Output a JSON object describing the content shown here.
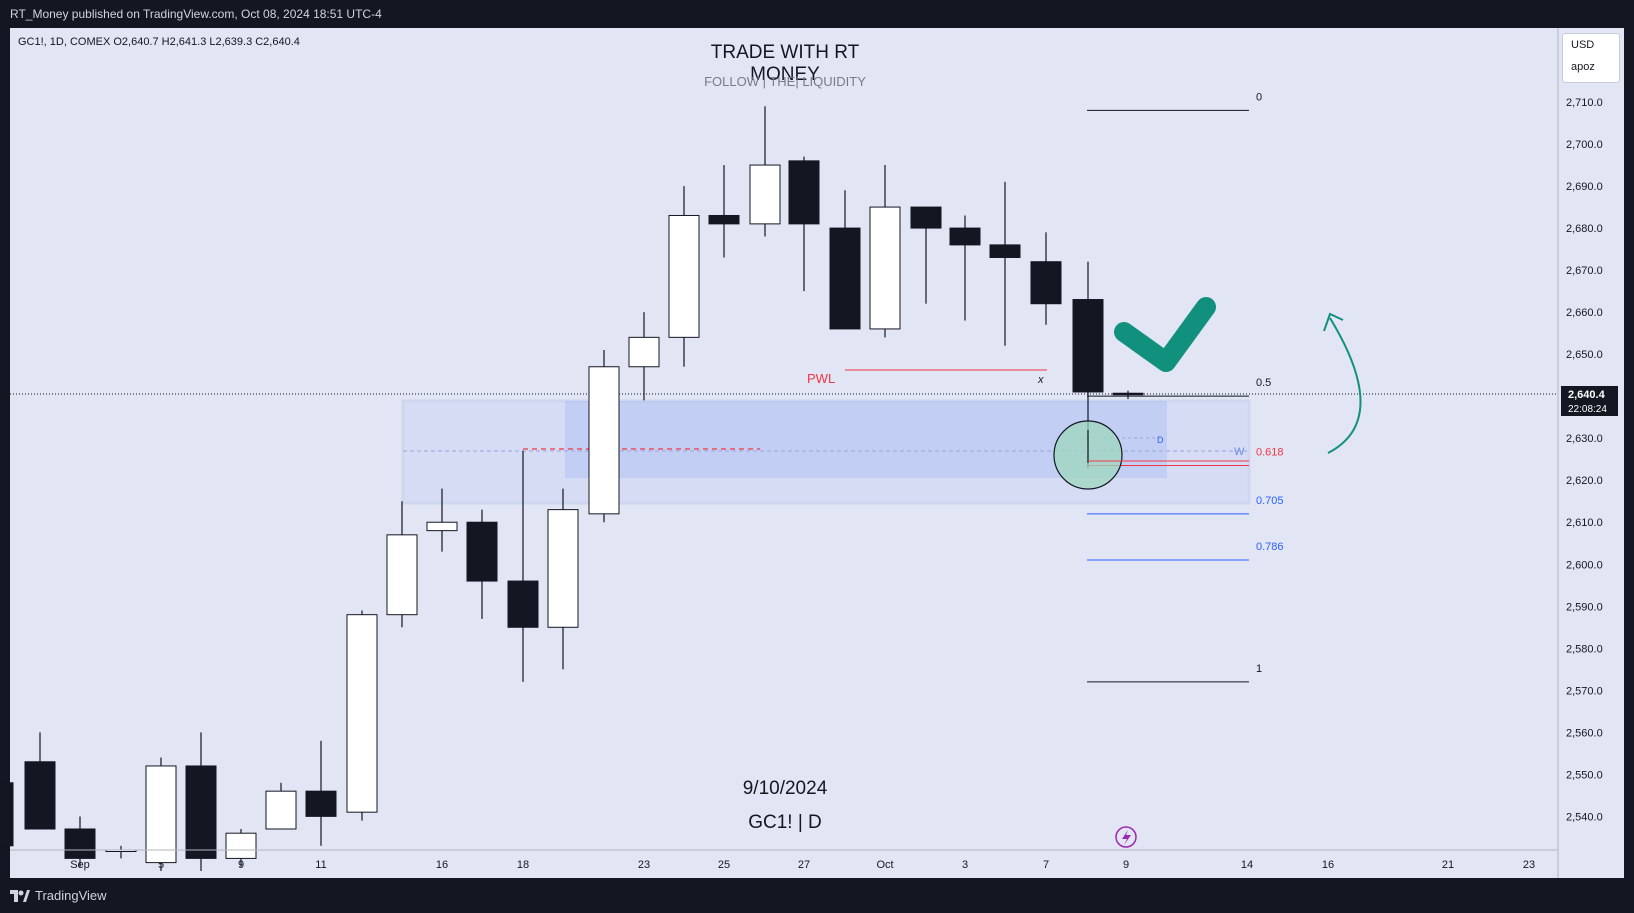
{
  "header": {
    "published": "RT_Money published on TradingView.com, Oct 08, 2024 18:51 UTC-4"
  },
  "symbol_info": {
    "ohlc_text": "GC1!, 1D, COMEX  O2,640.7  H2,641.3  L2,639.3  C2,640.4"
  },
  "overlay": {
    "title": "TRADE WITH RT MONEY",
    "subtitle": "FOLLOW  |  THE|  LIQUIDITY",
    "date": "9/10/2024",
    "symbol_tf": "GC1! | D"
  },
  "price_scale": {
    "currency": "USD",
    "scale_label": "apoz"
  },
  "footer": {
    "brand": "TradingView"
  },
  "colors": {
    "background": "#e2e5f4",
    "frame": "#131722",
    "bull_body": "#ffffff",
    "bear_body": "#131722",
    "accent_green": "#12907e",
    "fib_blue": "#2962ff",
    "fib_red": "#f23645"
  },
  "chart_data": {
    "type": "candlestick",
    "symbol": "GC1!",
    "timeframe": "1D",
    "exchange": "COMEX",
    "ylim": [
      2532,
      2720
    ],
    "y_ticks": [
      2540,
      2550,
      2560,
      2570,
      2580,
      2590,
      2600,
      2610,
      2620,
      2630,
      2640,
      2650,
      2660,
      2670,
      2680,
      2690,
      2700,
      2710
    ],
    "x_ticks": [
      "Sep",
      "5",
      "9",
      "11",
      "16",
      "18",
      "23",
      "25",
      "27",
      "Oct",
      "3",
      "7",
      "9",
      "14",
      "16",
      "21",
      "23"
    ],
    "candles": [
      {
        "o": 2548,
        "h": 2555,
        "l": 2533,
        "c": 2533
      },
      {
        "o": 2553,
        "h": 2560,
        "l": 2537,
        "c": 2537
      },
      {
        "o": 2537,
        "h": 2540,
        "l": 2528,
        "c": 2530
      },
      {
        "o": 2532,
        "h": 2533,
        "l": 2530,
        "c": 2532
      },
      {
        "o": 2529,
        "h": 2554,
        "l": 2527,
        "c": 2552
      },
      {
        "o": 2552,
        "h": 2560,
        "l": 2527,
        "c": 2530
      },
      {
        "o": 2530,
        "h": 2537,
        "l": 2528,
        "c": 2536
      },
      {
        "o": 2537,
        "h": 2548,
        "l": 2537,
        "c": 2546
      },
      {
        "o": 2546,
        "h": 2558,
        "l": 2533,
        "c": 2540
      },
      {
        "o": 2541,
        "h": 2589,
        "l": 2539,
        "c": 2588
      },
      {
        "o": 2588,
        "h": 2615,
        "l": 2585,
        "c": 2607
      },
      {
        "o": 2608,
        "h": 2618,
        "l": 2603,
        "c": 2610
      },
      {
        "o": 2610,
        "h": 2613,
        "l": 2587,
        "c": 2596
      },
      {
        "o": 2596,
        "h": 2627,
        "l": 2572,
        "c": 2585
      },
      {
        "o": 2585,
        "h": 2618,
        "l": 2575,
        "c": 2613
      },
      {
        "o": 2612,
        "h": 2651,
        "l": 2610,
        "c": 2647
      },
      {
        "o": 2647,
        "h": 2660,
        "l": 2639,
        "c": 2654
      },
      {
        "o": 2654,
        "h": 2690,
        "l": 2647,
        "c": 2683
      },
      {
        "o": 2683,
        "h": 2695,
        "l": 2673,
        "c": 2681
      },
      {
        "o": 2681,
        "h": 2709,
        "l": 2678,
        "c": 2695
      },
      {
        "o": 2696,
        "h": 2697,
        "l": 2665,
        "c": 2681
      },
      {
        "o": 2680,
        "h": 2689,
        "l": 2656,
        "c": 2656
      },
      {
        "o": 2656,
        "h": 2695,
        "l": 2654,
        "c": 2685
      },
      {
        "o": 2685,
        "h": 2685,
        "l": 2662,
        "c": 2680
      },
      {
        "o": 2680,
        "h": 2683,
        "l": 2658,
        "c": 2676
      },
      {
        "o": 2676,
        "h": 2691,
        "l": 2652,
        "c": 2673
      },
      {
        "o": 2672,
        "h": 2679,
        "l": 2657,
        "c": 2662
      },
      {
        "o": 2663,
        "h": 2672,
        "l": 2623,
        "c": 2641
      },
      {
        "o": 2640.7,
        "h": 2641.3,
        "l": 2639.3,
        "c": 2640.4
      }
    ],
    "last_price": {
      "value": "2,640.4",
      "countdown": "22:08:24"
    },
    "fibonacci": [
      {
        "level": "0",
        "price": 2708
      },
      {
        "level": "0.5",
        "price": 2640
      },
      {
        "level": "0.618",
        "price": 2623.5
      },
      {
        "level": "0.705",
        "price": 2612
      },
      {
        "level": "0.786",
        "price": 2601
      },
      {
        "level": "1",
        "price": 2572
      }
    ],
    "annotations": {
      "pwl": "PWL",
      "pwl_x_mark": "x",
      "zone_d": "D",
      "zone_w": "W"
    }
  }
}
